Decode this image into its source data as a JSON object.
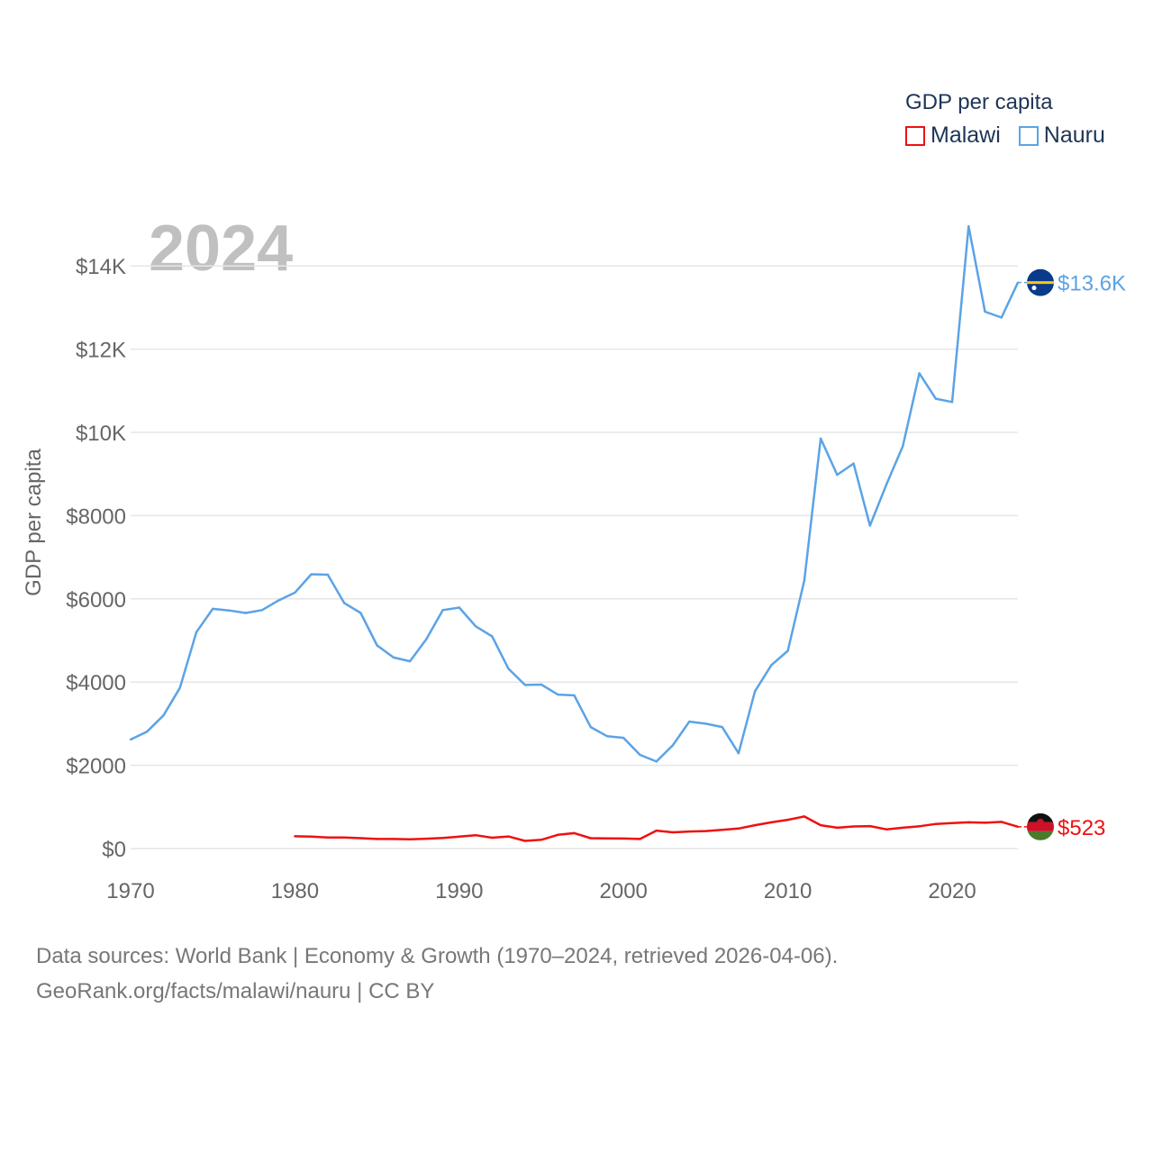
{
  "chart_data": {
    "type": "line",
    "ylabel": "GDP per capita",
    "xlim": [
      1970,
      2024
    ],
    "ylim": [
      0,
      15000
    ],
    "yticks": [
      0,
      2000,
      4000,
      6000,
      8000,
      10000,
      12000,
      14000
    ],
    "ytick_labels": [
      "$0",
      "$2000",
      "$4000",
      "$6000",
      "$8000",
      "$10K",
      "$12K",
      "$14K"
    ],
    "xticks": [
      1970,
      1980,
      1990,
      2000,
      2010,
      2020
    ],
    "xtick_labels": [
      "1970",
      "1980",
      "1990",
      "2000",
      "2010",
      "2020"
    ],
    "year_label": "2024",
    "legend_title": "GDP per capita",
    "series": [
      {
        "name": "Malawi",
        "color": "#ee1111",
        "end_label": "$523",
        "x": [
          1980,
          1981,
          1982,
          1983,
          1984,
          1985,
          1986,
          1987,
          1988,
          1989,
          1990,
          1991,
          1992,
          1993,
          1994,
          1995,
          1996,
          1997,
          1998,
          1999,
          2000,
          2001,
          2002,
          2003,
          2004,
          2005,
          2006,
          2007,
          2008,
          2009,
          2010,
          2011,
          2012,
          2013,
          2014,
          2015,
          2016,
          2017,
          2018,
          2019,
          2020,
          2021,
          2022,
          2023,
          2024
        ],
        "values": [
          295,
          285,
          265,
          265,
          250,
          230,
          230,
          220,
          235,
          255,
          285,
          320,
          260,
          290,
          185,
          210,
          330,
          370,
          250,
          245,
          240,
          230,
          430,
          390,
          410,
          420,
          450,
          480,
          560,
          630,
          690,
          770,
          560,
          500,
          530,
          540,
          460,
          500,
          535,
          590,
          610,
          630,
          620,
          640,
          523
        ]
      },
      {
        "name": "Nauru",
        "color": "#5ba3e6",
        "end_label": "$13.6K",
        "x": [
          1970,
          1971,
          1972,
          1973,
          1974,
          1975,
          1976,
          1977,
          1978,
          1979,
          1980,
          1981,
          1982,
          1983,
          1984,
          1985,
          1986,
          1987,
          1988,
          1989,
          1990,
          1991,
          1992,
          1993,
          1994,
          1995,
          1996,
          1997,
          1998,
          1999,
          2000,
          2001,
          2002,
          2003,
          2004,
          2005,
          2006,
          2007,
          2008,
          2009,
          2010,
          2011,
          2012,
          2013,
          2014,
          2015,
          2016,
          2017,
          2018,
          2019,
          2020,
          2021,
          2022,
          2023,
          2024
        ],
        "values": [
          2620,
          2810,
          3200,
          3860,
          5200,
          5760,
          5720,
          5660,
          5730,
          5960,
          6150,
          6590,
          6580,
          5900,
          5660,
          4880,
          4590,
          4500,
          5030,
          5730,
          5790,
          5340,
          5100,
          4320,
          3930,
          3940,
          3700,
          3680,
          2920,
          2700,
          2660,
          2250,
          2090,
          2480,
          3050,
          3000,
          2920,
          2290,
          3780,
          4410,
          4750,
          6440,
          9850,
          8980,
          9250,
          7760,
          8750,
          9670,
          11420,
          10810,
          10730,
          14950,
          12900,
          12760,
          13600
        ]
      }
    ]
  },
  "sources": {
    "line1": "Data sources: World Bank | Economy & Growth (1970–2024, retrieved 2026-04-06).",
    "line2": "GeoRank.org/facts/malawi/nauru | CC BY"
  },
  "flags": {
    "malawi": "malawi-flag-icon",
    "nauru": "nauru-flag-icon"
  }
}
